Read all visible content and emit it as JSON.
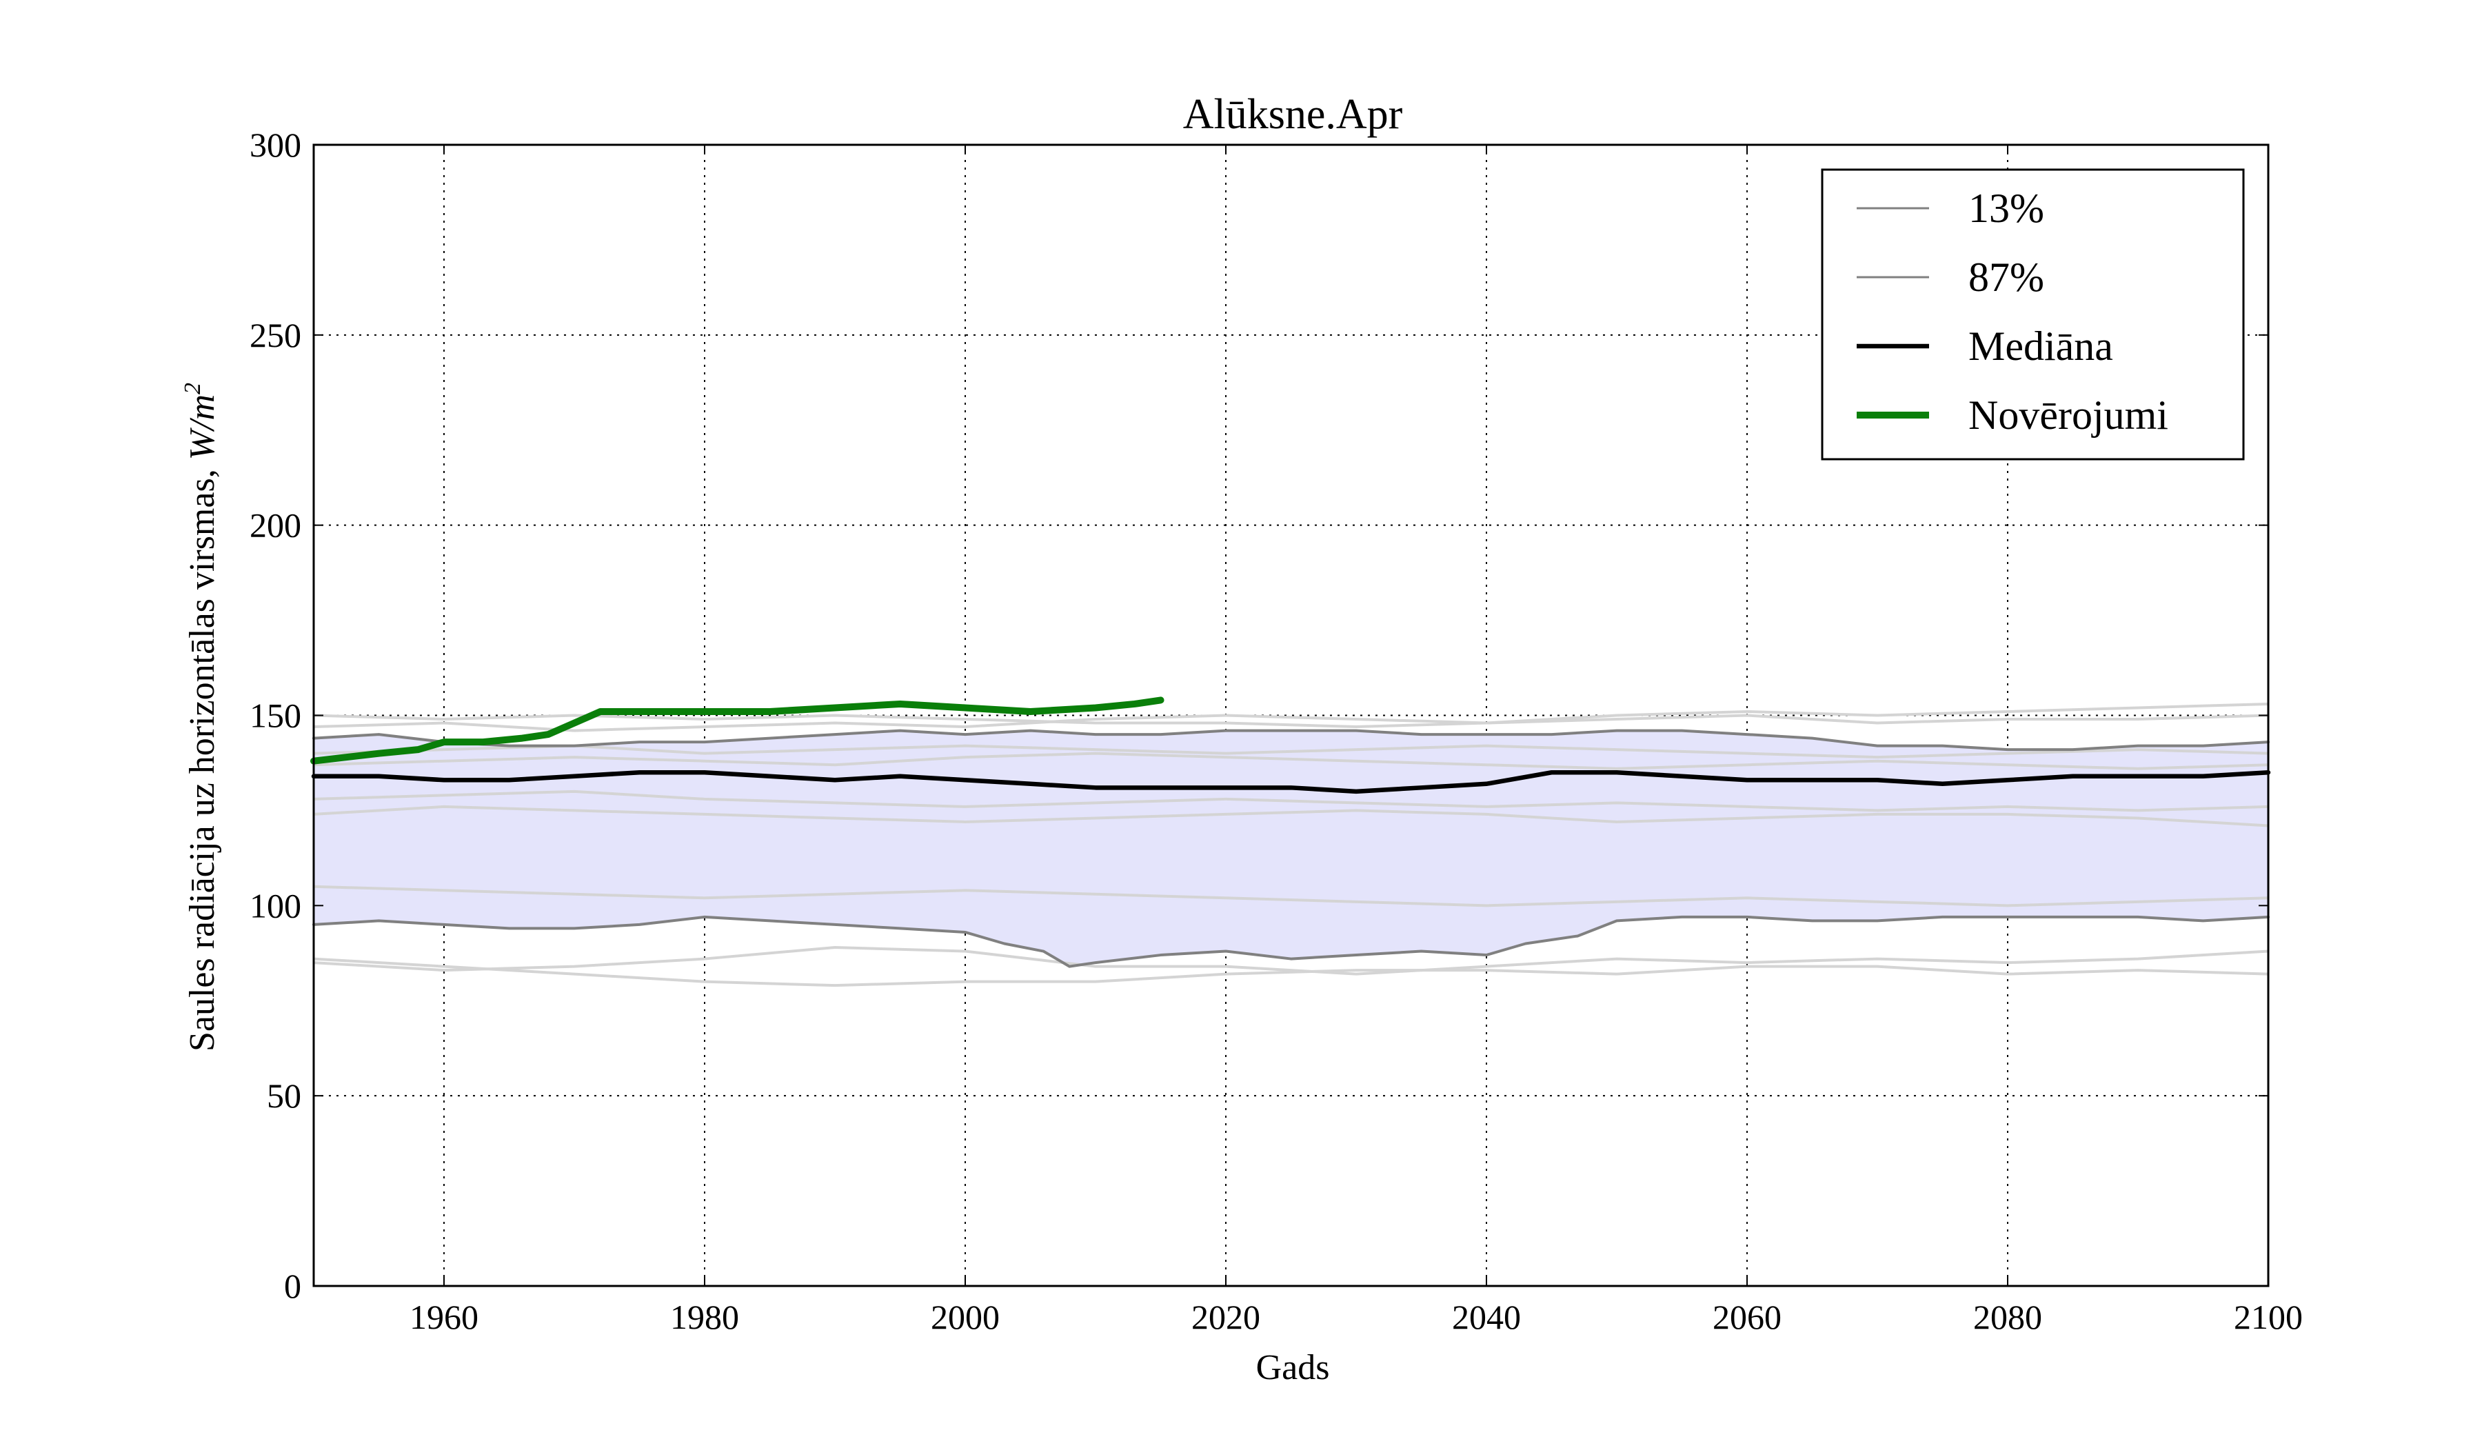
{
  "chart_data": {
    "type": "line",
    "title": "Alūksne.Apr",
    "xlabel": "Gads",
    "ylabel": "Saules radiācija uz horizontālas virsmas, ",
    "ylabel_unit": "W/m",
    "ylabel_unit_exp": "2",
    "xlim": [
      1950,
      2100
    ],
    "ylim": [
      0,
      300
    ],
    "xticks": [
      1960,
      1980,
      2000,
      2020,
      2040,
      2060,
      2080,
      2100
    ],
    "yticks": [
      0,
      50,
      100,
      150,
      200,
      250,
      300
    ],
    "grid": true,
    "legend_position": "top-right",
    "band_color": "#e4e4fb",
    "ensemble_color": "#d4d4d4",
    "legend": [
      {
        "label": "13%",
        "color": "#808080"
      },
      {
        "label": "87%",
        "color": "#808080"
      },
      {
        "label": "Mediāna",
        "color": "#000000"
      },
      {
        "label": "Novērojumi",
        "color": "#0a7f0a"
      }
    ],
    "series": [
      {
        "name": "13%",
        "role": "p13",
        "color": "#808080",
        "x": [
          1950,
          1955,
          1960,
          1965,
          1970,
          1975,
          1980,
          1985,
          1990,
          1995,
          2000,
          2003,
          2006,
          2008,
          2010,
          2015,
          2020,
          2025,
          2030,
          2035,
          2040,
          2043,
          2047,
          2050,
          2055,
          2060,
          2065,
          2070,
          2075,
          2080,
          2085,
          2090,
          2095,
          2100
        ],
        "values": [
          95,
          96,
          95,
          94,
          94,
          95,
          97,
          96,
          95,
          94,
          93,
          90,
          88,
          84,
          85,
          87,
          88,
          86,
          87,
          88,
          87,
          90,
          92,
          96,
          97,
          97,
          96,
          96,
          97,
          97,
          97,
          97,
          96,
          97
        ]
      },
      {
        "name": "87%",
        "role": "p87",
        "color": "#808080",
        "x": [
          1950,
          1955,
          1960,
          1965,
          1970,
          1975,
          1980,
          1985,
          1990,
          1995,
          2000,
          2005,
          2010,
          2015,
          2020,
          2025,
          2030,
          2035,
          2040,
          2045,
          2050,
          2055,
          2060,
          2065,
          2070,
          2075,
          2080,
          2085,
          2090,
          2095,
          2100
        ],
        "values": [
          144,
          145,
          143,
          142,
          142,
          143,
          143,
          144,
          145,
          146,
          145,
          146,
          145,
          145,
          146,
          146,
          146,
          145,
          145,
          145,
          146,
          146,
          145,
          144,
          142,
          142,
          141,
          141,
          142,
          142,
          143
        ]
      },
      {
        "name": "Mediāna",
        "role": "median",
        "color": "#000000",
        "x": [
          1950,
          1955,
          1960,
          1965,
          1970,
          1975,
          1980,
          1985,
          1990,
          1995,
          2000,
          2005,
          2010,
          2015,
          2020,
          2025,
          2030,
          2035,
          2040,
          2045,
          2050,
          2055,
          2060,
          2065,
          2070,
          2075,
          2080,
          2085,
          2090,
          2095,
          2100
        ],
        "values": [
          134,
          134,
          133,
          133,
          134,
          135,
          135,
          134,
          133,
          134,
          133,
          132,
          131,
          131,
          131,
          131,
          130,
          131,
          132,
          135,
          135,
          134,
          133,
          133,
          133,
          132,
          133,
          134,
          134,
          134,
          135
        ]
      },
      {
        "name": "Novērojumi",
        "role": "obs",
        "color": "#0a7f0a",
        "x": [
          1950,
          1955,
          1958,
          1960,
          1963,
          1966,
          1968,
          1970,
          1972,
          1975,
          1978,
          1980,
          1985,
          1990,
          1995,
          2000,
          2005,
          2010,
          2013,
          2015
        ],
        "values": [
          138,
          140,
          141,
          143,
          143,
          144,
          145,
          148,
          151,
          151,
          151,
          151,
          151,
          152,
          153,
          152,
          151,
          152,
          153,
          154
        ]
      },
      {
        "role": "member",
        "x": [
          1950,
          1960,
          1970,
          1980,
          1990,
          2000,
          2010,
          2020,
          2030,
          2040,
          2050,
          2060,
          2070,
          2080,
          2090,
          2100
        ],
        "values": [
          86,
          84,
          82,
          80,
          79,
          80,
          80,
          82,
          83,
          83,
          82,
          84,
          84,
          82,
          83,
          82
        ]
      },
      {
        "role": "member",
        "x": [
          1950,
          1960,
          1970,
          1980,
          1990,
          2000,
          2010,
          2020,
          2030,
          2040,
          2050,
          2060,
          2070,
          2080,
          2090,
          2100
        ],
        "values": [
          85,
          83,
          84,
          86,
          89,
          88,
          84,
          84,
          82,
          84,
          86,
          85,
          86,
          85,
          86,
          88
        ]
      },
      {
        "role": "member",
        "x": [
          1950,
          1960,
          1970,
          1980,
          1990,
          2000,
          2010,
          2020,
          2030,
          2040,
          2050,
          2060,
          2070,
          2080,
          2090,
          2100
        ],
        "values": [
          105,
          104,
          103,
          102,
          103,
          104,
          103,
          102,
          101,
          100,
          101,
          102,
          101,
          100,
          101,
          102
        ]
      },
      {
        "role": "member",
        "x": [
          1950,
          1960,
          1970,
          1980,
          1990,
          2000,
          2010,
          2020,
          2030,
          2040,
          2050,
          2060,
          2070,
          2080,
          2090,
          2100
        ],
        "values": [
          124,
          126,
          125,
          124,
          123,
          122,
          123,
          124,
          125,
          124,
          122,
          123,
          124,
          124,
          123,
          121
        ]
      },
      {
        "role": "member",
        "x": [
          1950,
          1960,
          1970,
          1980,
          1990,
          2000,
          2010,
          2020,
          2030,
          2040,
          2050,
          2060,
          2070,
          2080,
          2090,
          2100
        ],
        "values": [
          128,
          129,
          130,
          128,
          127,
          126,
          127,
          128,
          127,
          126,
          127,
          126,
          125,
          126,
          125,
          126
        ]
      },
      {
        "role": "member",
        "x": [
          1950,
          1960,
          1970,
          1980,
          1990,
          2000,
          2010,
          2020,
          2030,
          2040,
          2050,
          2060,
          2070,
          2080,
          2090,
          2100
        ],
        "values": [
          137,
          138,
          139,
          138,
          137,
          139,
          140,
          139,
          138,
          137,
          136,
          137,
          138,
          137,
          136,
          137
        ]
      },
      {
        "role": "member",
        "x": [
          1950,
          1960,
          1970,
          1980,
          1990,
          2000,
          2010,
          2020,
          2030,
          2040,
          2050,
          2060,
          2070,
          2080,
          2090,
          2100
        ],
        "values": [
          140,
          141,
          142,
          140,
          141,
          142,
          141,
          140,
          141,
          142,
          141,
          140,
          139,
          140,
          141,
          140
        ]
      },
      {
        "role": "member",
        "x": [
          1950,
          1960,
          1970,
          1980,
          1990,
          2000,
          2010,
          2020,
          2030,
          2040,
          2050,
          2060,
          2070,
          2080,
          2090,
          2100
        ],
        "values": [
          147,
          148,
          146,
          147,
          148,
          147,
          149,
          150,
          149,
          148,
          150,
          151,
          150,
          151,
          152,
          153
        ]
      },
      {
        "role": "member",
        "x": [
          1950,
          1960,
          1970,
          1980,
          1990,
          2000,
          2010,
          2020,
          2030,
          2040,
          2050,
          2060,
          2070,
          2080,
          2090,
          2100
        ],
        "values": [
          150,
          149,
          150,
          149,
          150,
          149,
          148,
          148,
          147,
          148,
          149,
          150,
          148,
          149,
          149,
          150
        ]
      }
    ]
  }
}
